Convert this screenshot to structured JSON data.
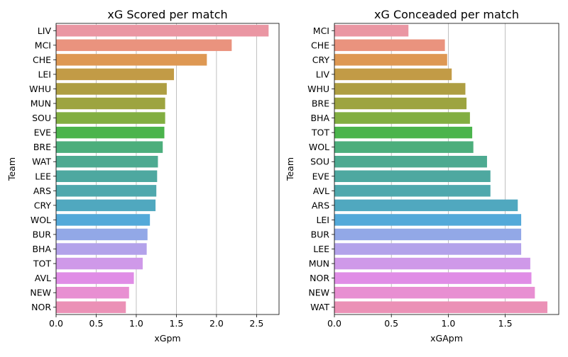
{
  "chart_data": [
    {
      "type": "bar",
      "orientation": "horizontal",
      "title": "xG Scored per match",
      "xlabel": "xGpm",
      "ylabel": "Team",
      "xlim": [
        0,
        2.78
      ],
      "xticks": [
        "0.0",
        "0.5",
        "1.0",
        "1.5",
        "2.0",
        "2.5"
      ],
      "grid": "vertical",
      "categories": [
        "LIV",
        "MCI",
        "CHE",
        "LEI",
        "WHU",
        "MUN",
        "SOU",
        "EVE",
        "BRE",
        "WAT",
        "LEE",
        "ARS",
        "CRY",
        "WOL",
        "BUR",
        "BHA",
        "TOT",
        "AVL",
        "NEW",
        "NOR"
      ],
      "values": [
        2.65,
        2.19,
        1.88,
        1.47,
        1.38,
        1.36,
        1.36,
        1.35,
        1.33,
        1.27,
        1.26,
        1.25,
        1.24,
        1.17,
        1.14,
        1.13,
        1.08,
        0.97,
        0.91,
        0.87
      ],
      "colors": [
        "#ea96a3",
        "#ea937e",
        "#de9853",
        "#c29b46",
        "#ae9e42",
        "#9da440",
        "#82ae41",
        "#4bb44c",
        "#4cae7c",
        "#4daa91",
        "#4ea8a0",
        "#4fa8ad",
        "#50a8bf",
        "#53a9d9",
        "#92a8e7",
        "#b3a2ea",
        "#cf99e9",
        "#e08de6",
        "#e88fd2",
        "#eb91b6"
      ]
    },
    {
      "type": "bar",
      "orientation": "horizontal",
      "title": "xG Conceaded per match",
      "xlabel": "xGApm",
      "ylabel": "Team",
      "xlim": [
        0,
        1.97
      ],
      "xticks": [
        "0.0",
        "0.5",
        "1.0",
        "1.5"
      ],
      "grid": "vertical",
      "categories": [
        "MCI",
        "CHE",
        "CRY",
        "LIV",
        "WHU",
        "BRE",
        "BHA",
        "TOT",
        "WOL",
        "SOU",
        "EVE",
        "AVL",
        "ARS",
        "LEI",
        "BUR",
        "LEE",
        "MUN",
        "NOR",
        "NEW",
        "WAT"
      ],
      "values": [
        0.65,
        0.97,
        0.99,
        1.03,
        1.15,
        1.16,
        1.19,
        1.21,
        1.22,
        1.34,
        1.37,
        1.37,
        1.61,
        1.64,
        1.64,
        1.64,
        1.72,
        1.73,
        1.76,
        1.87
      ],
      "colors": [
        "#ea96a3",
        "#ea937e",
        "#de9853",
        "#c29b46",
        "#ae9e42",
        "#9da440",
        "#82ae41",
        "#4bb44c",
        "#4cae7c",
        "#4daa91",
        "#4ea8a0",
        "#4fa8ad",
        "#50a8bf",
        "#53a9d9",
        "#92a8e7",
        "#b3a2ea",
        "#cf99e9",
        "#e08de6",
        "#e88fd2",
        "#eb91b6"
      ]
    }
  ]
}
